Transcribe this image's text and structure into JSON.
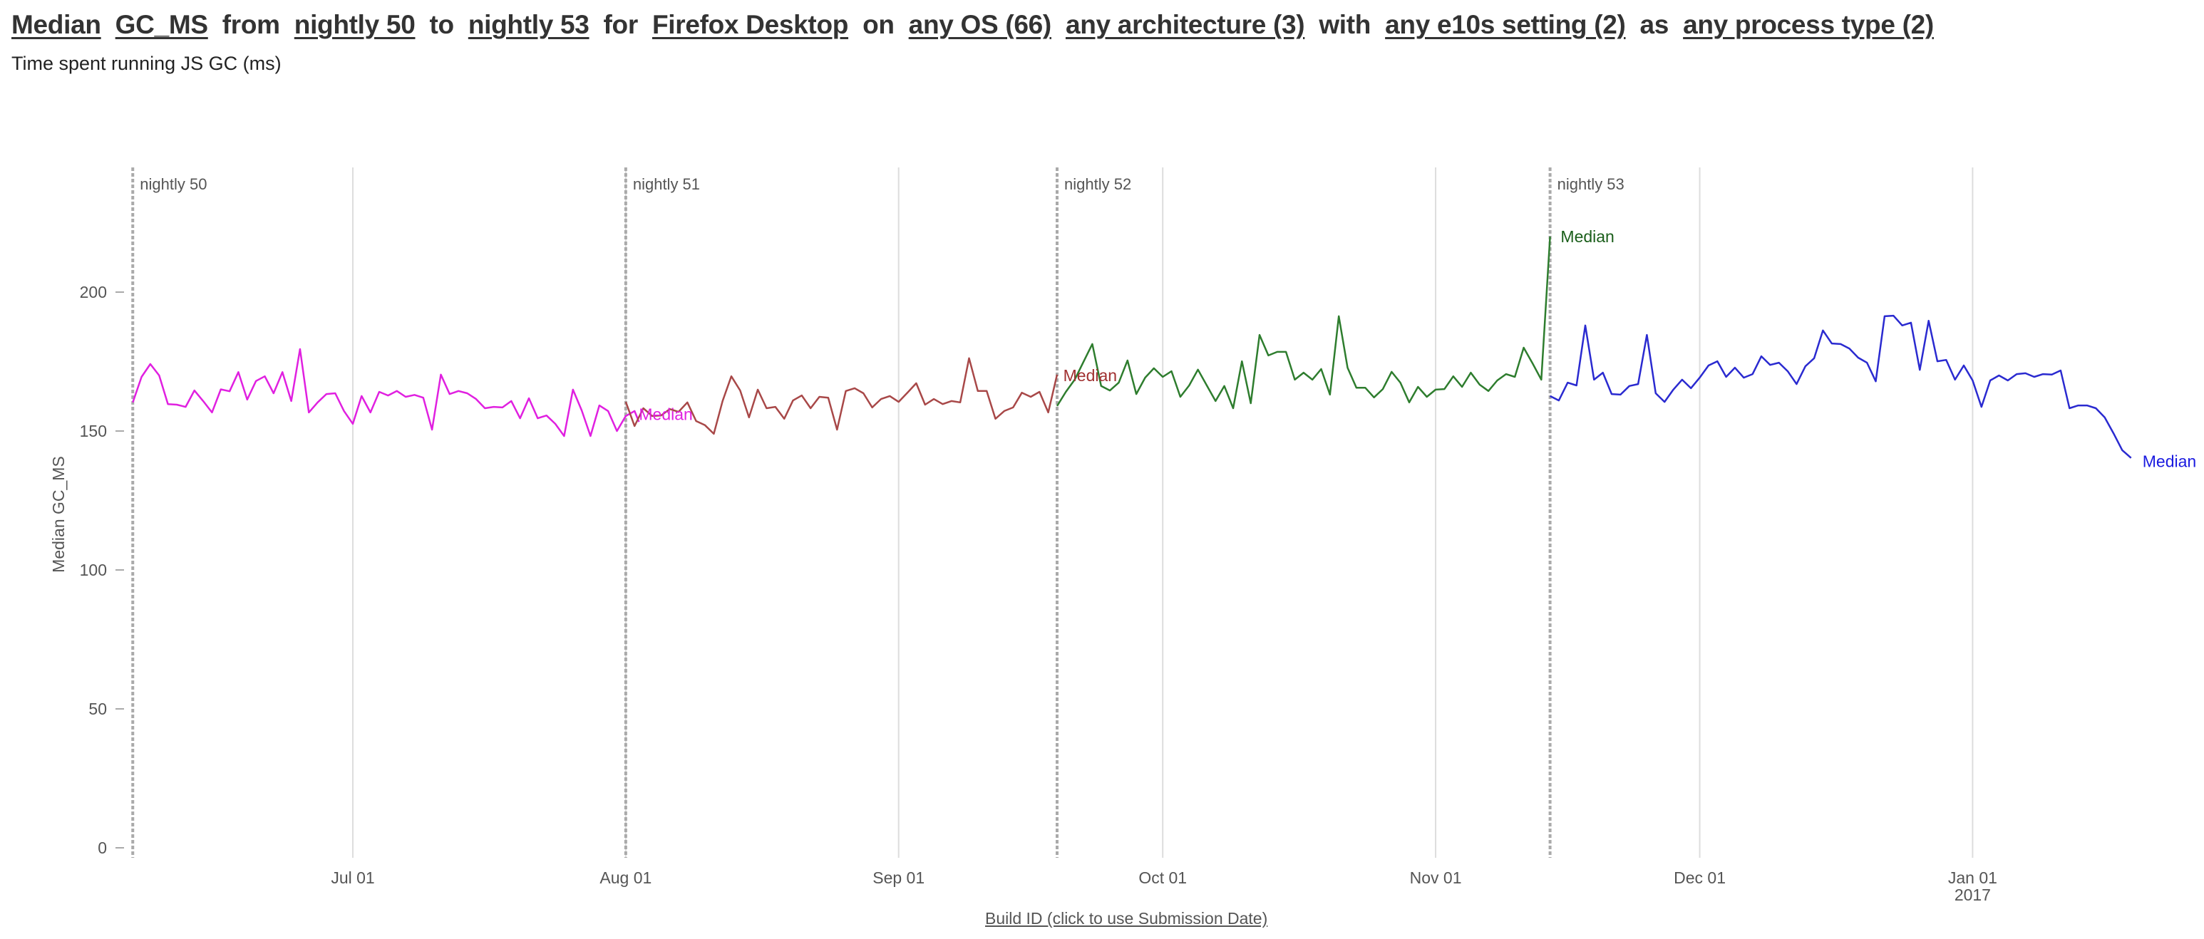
{
  "header": {
    "parts": [
      {
        "text": "Median",
        "link": true,
        "name": "metric-aggregate-selector"
      },
      {
        "text": "GC_MS",
        "link": true,
        "name": "measure-selector"
      },
      {
        "text": "from",
        "link": false,
        "name": "text-from"
      },
      {
        "text": "nightly 50",
        "link": true,
        "name": "start-version-selector"
      },
      {
        "text": "to",
        "link": false,
        "name": "text-to"
      },
      {
        "text": "nightly 53",
        "link": true,
        "name": "end-version-selector"
      },
      {
        "text": "for",
        "link": false,
        "name": "text-for"
      },
      {
        "text": "Firefox Desktop",
        "link": true,
        "name": "product-selector"
      },
      {
        "text": "on",
        "link": false,
        "name": "text-on"
      },
      {
        "text": "any OS (66)",
        "link": true,
        "name": "os-selector"
      },
      {
        "text": "any architecture (3)",
        "link": true,
        "name": "architecture-selector"
      },
      {
        "text": "with",
        "link": false,
        "name": "text-with"
      },
      {
        "text": "any e10s setting (2)",
        "link": true,
        "name": "e10s-selector"
      },
      {
        "text": "as",
        "link": false,
        "name": "text-as"
      },
      {
        "text": "any process type (2)",
        "link": true,
        "name": "process-type-selector"
      }
    ],
    "subtitle": "Time spent running JS GC (ms)"
  },
  "x_axis_toggle_label": "Build ID (click to use Submission Date)",
  "chart_data": {
    "type": "line",
    "title": "Median GC_MS from nightly 50 to nightly 53",
    "subtitle": "Time spent running JS GC (ms)",
    "xlabel": "Build ID (click to use Submission Date)",
    "ylabel": "Median GC_MS",
    "ylim": [
      0,
      240
    ],
    "yticks": [
      0,
      50,
      100,
      150,
      200
    ],
    "x_unit": "days since 2016-06-01",
    "xlim": [
      5,
      70.5
    ],
    "xticks": [
      {
        "day": 30,
        "label": "Jul 01"
      },
      {
        "day": 61,
        "label": "Aug 01"
      },
      {
        "day": 92,
        "label": "Sep 01"
      },
      {
        "day": 122,
        "label": "Oct 01"
      },
      {
        "day": 153,
        "label": "Nov 01"
      },
      {
        "day": 183,
        "label": "Dec 01"
      },
      {
        "day": 214,
        "label": "Jan 01",
        "sublabel": "2017"
      }
    ],
    "grid": {
      "vertical": true,
      "horizontal": false
    },
    "version_markers": [
      {
        "day": 5,
        "label": "nightly 50"
      },
      {
        "day": 61,
        "label": "nightly 51"
      },
      {
        "day": 110,
        "label": "nightly 52"
      },
      {
        "day": 166,
        "label": "nightly 53"
      }
    ],
    "series": [
      {
        "name": "nightly 50",
        "label": "Median",
        "color": "#e020e0",
        "label_color": "#e020e0",
        "label_at": {
          "day": 62.5,
          "value": 154
        },
        "points": [
          [
            5,
            160.3
          ],
          [
            6,
            169.5
          ],
          [
            7,
            174.1
          ],
          [
            8,
            170
          ],
          [
            9,
            159.7
          ],
          [
            10,
            159.5
          ],
          [
            11,
            158.7
          ],
          [
            12,
            164.6
          ],
          [
            13,
            160.8
          ],
          [
            14,
            156.7
          ],
          [
            15,
            165
          ],
          [
            16,
            164.3
          ],
          [
            17,
            171.2
          ],
          [
            18,
            161.3
          ],
          [
            19,
            168
          ],
          [
            20,
            169.7
          ],
          [
            21,
            163.6
          ],
          [
            22,
            171.2
          ],
          [
            23,
            160.8
          ],
          [
            24,
            179.5
          ],
          [
            25,
            156.7
          ],
          [
            26,
            160.3
          ],
          [
            27,
            163.3
          ],
          [
            28,
            163.6
          ],
          [
            29,
            157.2
          ],
          [
            30,
            152.6
          ],
          [
            31,
            162.6
          ],
          [
            32,
            156.7
          ],
          [
            33,
            164.1
          ],
          [
            34,
            162.8
          ],
          [
            35,
            164.4
          ],
          [
            36,
            162.3
          ],
          [
            37,
            163
          ],
          [
            38,
            162
          ],
          [
            39,
            150.5
          ],
          [
            40,
            170.3
          ],
          [
            41,
            163.3
          ],
          [
            42,
            164.4
          ],
          [
            43,
            163.6
          ],
          [
            44,
            161.5
          ],
          [
            45,
            158.2
          ],
          [
            46,
            158.7
          ],
          [
            47,
            158.5
          ],
          [
            48,
            160.8
          ],
          [
            49,
            154.6
          ],
          [
            50,
            161.8
          ],
          [
            51,
            154.6
          ],
          [
            52,
            155.6
          ],
          [
            53,
            152.6
          ],
          [
            54,
            148.2
          ],
          [
            55,
            164.9
          ],
          [
            56,
            157.4
          ],
          [
            57,
            148.2
          ],
          [
            58,
            159.2
          ],
          [
            59,
            157.2
          ],
          [
            60,
            150
          ],
          [
            61,
            155.4
          ],
          [
            62,
            157.2
          ],
          [
            62.5,
            153.3
          ]
        ]
      },
      {
        "name": "nightly 51",
        "label": "Median",
        "color": "#a84848",
        "label_color": "#a03030",
        "label_at": {
          "day": 110.7,
          "value": 168
        },
        "points": [
          [
            61,
            160.5
          ],
          [
            62,
            151.8
          ],
          [
            63,
            158.2
          ],
          [
            64,
            155.4
          ],
          [
            65,
            155.6
          ],
          [
            66,
            157.9
          ],
          [
            67,
            156.9
          ],
          [
            68,
            160.3
          ],
          [
            69,
            153.6
          ],
          [
            70,
            152.1
          ],
          [
            71,
            149
          ],
          [
            72,
            160.8
          ],
          [
            73,
            169.7
          ],
          [
            74,
            164.6
          ],
          [
            75,
            154.9
          ],
          [
            76,
            164.9
          ],
          [
            77,
            158.2
          ],
          [
            78,
            158.7
          ],
          [
            79,
            154.4
          ],
          [
            80,
            161
          ],
          [
            81,
            162.8
          ],
          [
            82,
            158.2
          ],
          [
            83,
            162.3
          ],
          [
            84,
            162
          ],
          [
            85,
            150.5
          ],
          [
            86,
            164.4
          ],
          [
            87,
            165.4
          ],
          [
            88,
            163.6
          ],
          [
            89,
            158.5
          ],
          [
            90,
            161.5
          ],
          [
            91,
            162.6
          ],
          [
            92,
            160.5
          ],
          [
            93,
            163.8
          ],
          [
            94,
            167.2
          ],
          [
            95,
            159.5
          ],
          [
            96,
            161.5
          ],
          [
            97,
            159.7
          ],
          [
            98,
            160.8
          ],
          [
            99,
            160.3
          ],
          [
            100,
            176.2
          ],
          [
            101,
            164.4
          ],
          [
            102,
            164.4
          ],
          [
            103,
            154.4
          ],
          [
            104,
            157.2
          ],
          [
            105,
            158.5
          ],
          [
            106,
            163.8
          ],
          [
            107,
            162.3
          ],
          [
            108,
            164.1
          ],
          [
            109,
            156.7
          ],
          [
            110,
            170.3
          ]
        ]
      },
      {
        "name": "nightly 52",
        "label": "Median",
        "color": "#2e7d2e",
        "label_color": "#1a5e1a",
        "label_at": {
          "day": 167.2,
          "value": 218
        },
        "points": [
          [
            110,
            159
          ],
          [
            111,
            164.1
          ],
          [
            112,
            168.5
          ],
          [
            113,
            174.9
          ],
          [
            114,
            181.3
          ],
          [
            115,
            166.2
          ],
          [
            116,
            164.6
          ],
          [
            117,
            167.4
          ],
          [
            118,
            175.4
          ],
          [
            119,
            163.3
          ],
          [
            120,
            169.2
          ],
          [
            121,
            172.6
          ],
          [
            122,
            169.5
          ],
          [
            123,
            171.5
          ],
          [
            124,
            162.3
          ],
          [
            125,
            166.4
          ],
          [
            126,
            172.1
          ],
          [
            127,
            166.4
          ],
          [
            128,
            160.8
          ],
          [
            129,
            166.2
          ],
          [
            130,
            158.2
          ],
          [
            131,
            175.1
          ],
          [
            132,
            160
          ],
          [
            133,
            184.6
          ],
          [
            134,
            177.2
          ],
          [
            135,
            178.5
          ],
          [
            136,
            178.5
          ],
          [
            137,
            168.5
          ],
          [
            138,
            171
          ],
          [
            139,
            168.5
          ],
          [
            140,
            172.3
          ],
          [
            141,
            163.1
          ],
          [
            142,
            191.3
          ],
          [
            143,
            172.8
          ],
          [
            144,
            165.6
          ],
          [
            145,
            165.6
          ],
          [
            146,
            162.1
          ],
          [
            147,
            165.1
          ],
          [
            148,
            171.3
          ],
          [
            149,
            167.4
          ],
          [
            150,
            160.3
          ],
          [
            151,
            165.9
          ],
          [
            152,
            162.3
          ],
          [
            153,
            164.9
          ],
          [
            154,
            165.1
          ],
          [
            155,
            169.7
          ],
          [
            156,
            165.9
          ],
          [
            157,
            171
          ],
          [
            158,
            166.7
          ],
          [
            159,
            164.4
          ],
          [
            160,
            168.2
          ],
          [
            161,
            170.5
          ],
          [
            162,
            169.5
          ],
          [
            163,
            180
          ],
          [
            164,
            174.4
          ],
          [
            165,
            168.5
          ],
          [
            166,
            220
          ]
        ]
      },
      {
        "name": "nightly 53",
        "label": "Median",
        "color": "#2a2ad0",
        "label_color": "#1a1ae0",
        "label_at": {
          "day": 233.3,
          "value": 137
        },
        "points": [
          [
            166,
            162.6
          ],
          [
            167,
            161
          ],
          [
            168,
            167.4
          ],
          [
            169,
            166.4
          ],
          [
            170,
            188
          ],
          [
            171,
            168.5
          ],
          [
            172,
            171
          ],
          [
            173,
            163.3
          ],
          [
            174,
            163.1
          ],
          [
            175,
            166.2
          ],
          [
            176,
            166.9
          ],
          [
            177,
            184.6
          ],
          [
            178,
            163.6
          ],
          [
            179,
            160.5
          ],
          [
            180,
            164.9
          ],
          [
            181,
            168.5
          ],
          [
            182,
            165.4
          ],
          [
            183,
            169.2
          ],
          [
            184,
            173.6
          ],
          [
            185,
            175.1
          ],
          [
            186,
            169.5
          ],
          [
            187,
            172.8
          ],
          [
            188,
            169.2
          ],
          [
            189,
            170.5
          ],
          [
            190,
            176.9
          ],
          [
            191,
            173.8
          ],
          [
            192,
            174.6
          ],
          [
            193,
            171.5
          ],
          [
            194,
            166.9
          ],
          [
            195,
            173.3
          ],
          [
            196,
            176.2
          ],
          [
            197,
            186.2
          ],
          [
            198,
            181.5
          ],
          [
            199,
            181.3
          ],
          [
            200,
            179.7
          ],
          [
            201,
            176.4
          ],
          [
            202,
            174.6
          ],
          [
            203,
            167.9
          ],
          [
            204,
            191.3
          ],
          [
            205,
            191.5
          ],
          [
            206,
            188
          ],
          [
            207,
            189
          ],
          [
            208,
            172
          ],
          [
            209,
            189.7
          ],
          [
            210,
            175.1
          ],
          [
            211,
            175.6
          ],
          [
            212,
            168.5
          ],
          [
            213,
            173.6
          ],
          [
            214,
            168.2
          ],
          [
            215,
            158.7
          ],
          [
            216,
            168.2
          ],
          [
            217,
            170
          ],
          [
            218,
            168.2
          ],
          [
            219,
            170.5
          ],
          [
            220,
            170.8
          ],
          [
            221,
            169.5
          ],
          [
            222,
            170.5
          ],
          [
            223,
            170.3
          ],
          [
            224,
            171.8
          ],
          [
            225,
            158.2
          ],
          [
            226,
            159.2
          ],
          [
            227,
            159.2
          ],
          [
            228,
            158.2
          ],
          [
            229,
            154.9
          ],
          [
            230,
            149.2
          ],
          [
            231,
            143.1
          ],
          [
            232,
            140.3
          ]
        ]
      }
    ]
  },
  "colors": {
    "grid": "#dddddd",
    "marker": "#aaaaaa",
    "tick_text": "#555555",
    "title_text": "#333333"
  }
}
